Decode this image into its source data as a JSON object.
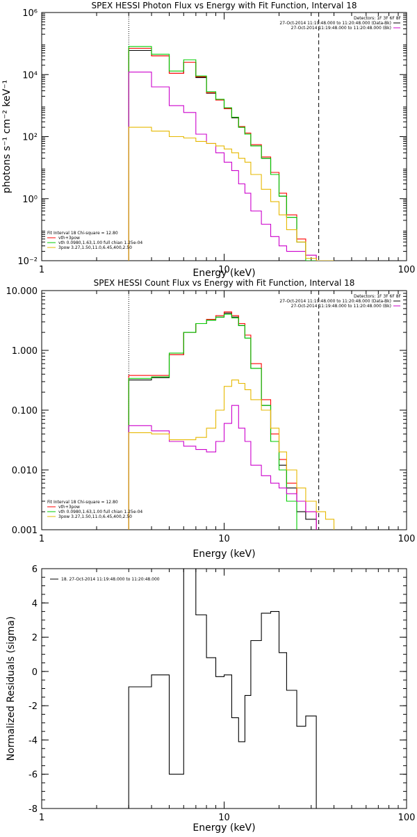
{
  "chart_data": [
    {
      "type": "line",
      "title": "SPEX HESSI Photon Flux vs Energy with Fit Function, Interval 18",
      "xlabel": "Energy (keV)",
      "ylabel": "photons s⁻¹ cm⁻² keV⁻¹",
      "xscale": "log",
      "yscale": "log",
      "xlim": [
        1,
        100
      ],
      "ylim": [
        0.01,
        1000000
      ],
      "x_ticks": [
        {
          "v": 1,
          "label": "1"
        },
        {
          "v": 10,
          "label": "10"
        },
        {
          "v": 100,
          "label": "100"
        }
      ],
      "y_ticks": [
        {
          "v": 0.01,
          "label": "10⁻²"
        },
        {
          "v": 1,
          "label": "10⁰"
        },
        {
          "v": 100,
          "label": "10²"
        },
        {
          "v": 10000,
          "label": "10⁴"
        },
        {
          "v": 1000000,
          "label": "10⁶"
        }
      ],
      "vlines": [
        {
          "x": 3.0,
          "style": "dotted"
        },
        {
          "x": 33.0,
          "style": "dashed"
        }
      ],
      "bin_edges": [
        3.0,
        4.0,
        5.0,
        6.0,
        7.0,
        8.0,
        9.0,
        10.0,
        11.0,
        12.0,
        13.0,
        14.0,
        16.0,
        18.0,
        20.0,
        22.0,
        25.0,
        28.0,
        32.0,
        36.0,
        40.0
      ],
      "legend_top": {
        "header": "Detectors: 1F 3F 6F 8F",
        "entries": [
          {
            "text": "27-Oct-2014 11:19:48.000 to 11:20:48.000 (Data-Bk)",
            "color": "#000000"
          },
          {
            "text": "27-Oct-2014 11:19:48.000 to 11:20:48.000 (Bk)",
            "color": "#cc00cc"
          }
        ]
      },
      "legend_bottom": {
        "header": "Fit Interval 18   Chi-square = 12.80",
        "entries": [
          {
            "text": "vth+3pow",
            "color": "#ff0000"
          },
          {
            "text": "vth 0.0980,1.63,1.00  full chian 1.25e-04",
            "color": "#00cc00"
          },
          {
            "text": "3pow 3.27,1.50,11.0,6.45,400,2.50",
            "color": "#e6b800"
          }
        ]
      },
      "series": [
        {
          "color": "#000000",
          "values": [
            60000,
            40000,
            11000,
            25000,
            8000,
            2500,
            1500,
            800,
            400,
            200,
            120,
            50,
            20,
            6,
            1.2,
            0.25,
            0.04,
            0.012,
            0.008,
            null
          ]
        },
        {
          "color": "#ff0000",
          "values": [
            70000,
            40000,
            11000,
            25000,
            8500,
            2600,
            1500,
            800,
            420,
            210,
            130,
            55,
            22,
            7,
            1.5,
            0.3,
            0.05,
            0.015,
            0.007,
            null
          ]
        },
        {
          "color": "#00cc00",
          "values": [
            80000,
            45000,
            13000,
            30000,
            9000,
            2800,
            1600,
            850,
            420,
            200,
            120,
            50,
            20,
            6,
            1.2,
            0.25,
            0.04,
            0.005,
            null,
            null
          ]
        },
        {
          "color": "#cc00cc",
          "values": [
            12000,
            4000,
            1000,
            600,
            120,
            60,
            30,
            15,
            8,
            3,
            1.5,
            0.4,
            0.15,
            0.06,
            0.03,
            0.02,
            0.02,
            0.015,
            0.01,
            null
          ]
        },
        {
          "color": "#e6b800",
          "values": [
            200,
            150,
            100,
            90,
            70,
            60,
            50,
            40,
            30,
            20,
            15,
            6,
            2,
            0.8,
            0.3,
            0.1,
            0.04,
            0.012,
            0.008,
            0.005
          ]
        }
      ]
    },
    {
      "type": "line",
      "title": "SPEX HESSI Count Flux vs Energy with Fit Function, Interval 18",
      "xlabel": "Energy (keV)",
      "ylabel": "",
      "xscale": "log",
      "yscale": "log",
      "xlim": [
        1,
        100
      ],
      "ylim": [
        0.001,
        10
      ],
      "x_ticks": [
        {
          "v": 1,
          "label": "1"
        },
        {
          "v": 10,
          "label": "10"
        },
        {
          "v": 100,
          "label": "100"
        }
      ],
      "y_ticks": [
        {
          "v": 0.001,
          "label": "0.001"
        },
        {
          "v": 0.01,
          "label": "0.010"
        },
        {
          "v": 0.1,
          "label": "0.100"
        },
        {
          "v": 1,
          "label": "1.000"
        },
        {
          "v": 10,
          "label": "10.000"
        }
      ],
      "vlines": [
        {
          "x": 3.0,
          "style": "dotted"
        },
        {
          "x": 33.0,
          "style": "dashed"
        }
      ],
      "bin_edges": [
        3.0,
        4.0,
        5.0,
        6.0,
        7.0,
        8.0,
        9.0,
        10.0,
        11.0,
        12.0,
        13.0,
        14.0,
        16.0,
        18.0,
        20.0,
        22.0,
        25.0,
        28.0,
        32.0,
        36.0,
        40.0
      ],
      "legend_top": {
        "header": "Detectors: 1F 3F 6F 8F",
        "entries": [
          {
            "text": "27-Oct-2014 11:19:48.000 to 11:20:48.000 (Data-Bk)",
            "color": "#000000"
          },
          {
            "text": "27-Oct-2014 11:19:48.000 to 11:20:48.000 (Bk)",
            "color": "#cc00cc"
          }
        ]
      },
      "legend_bottom": {
        "header": "Fit Interval 18   Chi-square = 12.80",
        "entries": [
          {
            "text": "vth+3pow",
            "color": "#ff0000"
          },
          {
            "text": "vth 0.0980,1.63,1.00  full chian 1.25e-04",
            "color": "#00cc00"
          },
          {
            "text": "3pow 3.27,1.50,11.0,6.45,400,2.50",
            "color": "#e6b800"
          }
        ]
      },
      "series": [
        {
          "color": "#000000",
          "values": [
            0.32,
            0.35,
            0.85,
            2.0,
            2.8,
            3.2,
            3.6,
            4.2,
            3.6,
            2.6,
            1.6,
            0.5,
            0.12,
            0.03,
            0.012,
            0.005,
            0.002,
            0.0015,
            null,
            null
          ]
        },
        {
          "color": "#ff0000",
          "values": [
            0.38,
            0.38,
            0.85,
            2.0,
            2.8,
            3.3,
            3.8,
            4.4,
            3.8,
            2.8,
            1.8,
            0.6,
            0.15,
            0.04,
            0.015,
            0.006,
            0.003,
            0.002,
            null,
            null
          ]
        },
        {
          "color": "#00cc00",
          "values": [
            0.34,
            0.36,
            0.9,
            2.0,
            2.8,
            3.2,
            3.6,
            4.0,
            3.5,
            2.6,
            1.6,
            0.5,
            0.12,
            0.03,
            0.01,
            0.003,
            null,
            null,
            null,
            null
          ]
        },
        {
          "color": "#cc00cc",
          "values": [
            0.055,
            0.045,
            0.03,
            0.025,
            0.022,
            0.02,
            0.03,
            0.06,
            0.12,
            0.05,
            0.03,
            0.012,
            0.008,
            0.006,
            0.005,
            0.004,
            0.003,
            0.002,
            null,
            null
          ]
        },
        {
          "color": "#e6b800",
          "values": [
            0.042,
            0.04,
            0.032,
            0.032,
            0.035,
            0.05,
            0.1,
            0.25,
            0.32,
            0.28,
            0.22,
            0.15,
            0.1,
            0.05,
            0.02,
            0.01,
            0.005,
            0.003,
            0.002,
            0.0015
          ]
        }
      ]
    },
    {
      "type": "line",
      "title": "",
      "xlabel": "Energy (keV)",
      "ylabel": "Normalized Residuals (sigma)",
      "xscale": "log",
      "yscale": "linear",
      "xlim": [
        1,
        100
      ],
      "ylim": [
        -8,
        6
      ],
      "x_ticks": [
        {
          "v": 1,
          "label": "1"
        },
        {
          "v": 10,
          "label": "10"
        },
        {
          "v": 100,
          "label": "100"
        }
      ],
      "y_ticks": [
        {
          "v": -8,
          "label": "-8"
        },
        {
          "v": -6,
          "label": "-6"
        },
        {
          "v": -4,
          "label": "-4"
        },
        {
          "v": -2,
          "label": "-2"
        },
        {
          "v": 0,
          "label": "0"
        },
        {
          "v": 2,
          "label": "2"
        },
        {
          "v": 4,
          "label": "4"
        },
        {
          "v": 6,
          "label": "6"
        }
      ],
      "legend_top": {
        "header": "",
        "entries": [
          {
            "text": "18. 27-Oct-2014 11:19:48.000 to 11:20:48.000",
            "color": "#000000"
          }
        ]
      },
      "bin_edges": [
        3.0,
        4.0,
        5.0,
        6.0,
        7.0,
        8.0,
        9.0,
        10.0,
        11.0,
        12.0,
        13.0,
        14.0,
        16.0,
        18.0,
        20.0,
        22.0,
        25.0,
        28.0,
        32.0
      ],
      "series": [
        {
          "color": "#000000",
          "values": [
            -0.9,
            -0.2,
            -6.0,
            6.0,
            3.3,
            0.8,
            -0.3,
            -0.2,
            -2.7,
            -4.1,
            -1.4,
            1.8,
            3.4,
            3.5,
            1.1,
            -1.1,
            -3.2,
            -2.6
          ]
        }
      ],
      "drop_to_bottom": true
    }
  ]
}
